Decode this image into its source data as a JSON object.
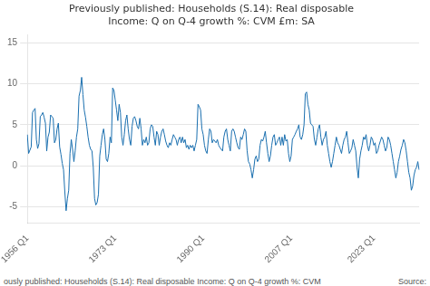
{
  "chart_data": {
    "type": "line",
    "title": "Previously published: Households (S.14): Real disposable\nIncome: Q on Q-4 growth %: CVM £m: SA",
    "annotations": [
      "ously published: Households (S.14): Real disposable Income: Q on Q-4 growth %: CVM",
      "Source:"
    ],
    "categories": [
      "1956 Q1",
      null,
      null,
      null,
      null,
      null,
      null,
      null,
      null,
      null,
      null,
      null,
      null,
      null,
      null,
      null,
      null,
      null,
      null,
      null,
      null,
      null,
      null,
      null,
      null,
      null,
      null,
      null,
      null,
      null,
      null,
      null,
      null,
      null,
      null,
      null,
      null,
      null,
      null,
      null,
      null,
      null,
      null,
      null,
      null,
      null,
      null,
      null,
      null,
      null,
      null,
      null,
      null,
      null,
      null,
      null,
      null,
      null,
      null,
      null,
      null,
      null,
      null,
      null,
      null,
      null,
      null,
      null,
      "1973 Q1",
      null,
      null,
      null,
      null,
      null,
      null,
      null,
      null,
      null,
      null,
      null,
      null,
      null,
      null,
      null,
      null,
      null,
      null,
      null,
      null,
      null,
      null,
      null,
      null,
      null,
      null,
      null,
      null,
      null,
      null,
      null,
      null,
      null,
      null,
      null,
      null,
      null,
      null,
      null,
      null,
      null,
      null,
      null,
      null,
      null,
      null,
      null,
      null,
      null,
      null,
      null,
      null,
      null,
      null,
      null,
      null,
      null,
      null,
      null,
      null,
      null,
      null,
      null,
      null,
      null,
      null,
      null,
      "1990 Q1",
      null,
      null,
      null,
      null,
      null,
      null,
      null,
      null,
      null,
      null,
      null,
      null,
      null,
      null,
      null,
      null,
      null,
      null,
      null,
      null,
      null,
      null,
      null,
      null,
      null,
      null,
      null,
      null,
      null,
      null,
      null,
      null,
      null,
      null,
      null,
      null,
      null,
      null,
      null,
      null,
      null,
      null,
      null,
      null,
      null,
      null,
      null,
      null,
      null,
      null,
      null,
      null,
      null,
      null,
      null,
      null,
      null,
      null,
      null,
      null,
      null,
      null,
      null,
      null,
      null,
      null,
      null,
      "2007 Q1",
      null,
      null,
      null,
      null,
      null,
      null,
      null,
      null,
      null,
      null,
      null,
      null,
      null,
      null,
      null,
      null,
      null,
      null,
      null,
      null,
      null,
      null,
      null,
      null,
      null,
      null,
      null,
      null,
      null,
      null,
      null,
      null,
      null,
      null,
      null,
      null,
      null,
      null,
      null,
      null,
      null,
      null,
      null,
      null,
      null,
      null,
      null,
      null,
      null,
      null,
      null,
      null,
      null,
      null,
      null,
      null,
      null,
      null,
      null,
      null,
      null,
      null,
      null,
      "2023 Q1",
      null,
      null,
      null,
      null,
      null,
      null,
      null,
      null,
      null,
      null,
      null,
      null,
      null,
      null,
      null,
      null,
      null,
      null,
      null,
      null,
      null,
      null,
      null,
      null,
      null,
      null,
      null,
      null,
      null,
      null,
      null,
      null,
      null,
      null,
      null
    ],
    "values": [
      3.8,
      1.5,
      1.9,
      2.3,
      6.5,
      6.8,
      7.0,
      3.2,
      2.1,
      2.7,
      6.0,
      6.2,
      6.5,
      5.9,
      5.2,
      1.8,
      3.5,
      4.1,
      6.2,
      6.0,
      5.8,
      2.8,
      3.2,
      4.5,
      5.2,
      2.3,
      1.4,
      0.3,
      -0.5,
      -3.2,
      -5.5,
      -4.0,
      -3.0,
      1.5,
      3.2,
      2.0,
      0.5,
      1.8,
      3.5,
      4.5,
      8.5,
      9.2,
      10.8,
      8.7,
      6.8,
      5.9,
      4.8,
      3.5,
      2.5,
      2.0,
      1.8,
      -0.2,
      -4.0,
      -4.8,
      -4.5,
      -3.5,
      1.2,
      2.5,
      3.8,
      4.5,
      3.2,
      0.8,
      0.5,
      1.5,
      3.5,
      2.8,
      9.5,
      9.2,
      8.0,
      6.8,
      5.5,
      7.5,
      6.5,
      3.5,
      2.5,
      3.8,
      5.5,
      6.2,
      4.5,
      3.2,
      2.5,
      4.8,
      5.8,
      6.0,
      5.5,
      4.8,
      4.5,
      5.8,
      4.5,
      2.5,
      3.2,
      2.8,
      3.5,
      2.5,
      2.8,
      4.5,
      5.0,
      4.8,
      3.5,
      2.5,
      4.2,
      3.8,
      2.5,
      3.5,
      4.2,
      4.5,
      3.8,
      3.0,
      2.5,
      2.2,
      2.8,
      2.5,
      3.2,
      3.8,
      3.5,
      3.2,
      2.5,
      3.2,
      3.5,
      2.8,
      3.5,
      2.8,
      3.2,
      2.2,
      2.5,
      2.0,
      2.5,
      2.2,
      2.5,
      1.8,
      2.5,
      3.2,
      7.5,
      7.2,
      6.8,
      4.5,
      3.8,
      2.5,
      1.8,
      1.5,
      3.2,
      4.5,
      4.2,
      2.8,
      3.2,
      3.0,
      2.8,
      3.2,
      2.5,
      2.2,
      2.0,
      1.8,
      3.5,
      4.2,
      4.5,
      3.2,
      2.5,
      1.8,
      4.2,
      4.5,
      4.2,
      3.5,
      2.8,
      2.2,
      2.0,
      3.5,
      3.2,
      3.8,
      4.5,
      4.2,
      1.8,
      0.5,
      0.2,
      -0.5,
      -1.5,
      -0.5,
      0.8,
      1.2,
      0.5,
      0.8,
      2.5,
      3.2,
      3.0,
      3.5,
      4.2,
      2.8,
      1.5,
      0.5,
      1.2,
      2.5,
      3.5,
      3.8,
      2.5,
      2.8,
      3.2,
      3.5,
      2.5,
      3.5,
      2.5,
      3.8,
      3.0,
      3.2,
      1.5,
      0.5,
      1.2,
      3.2,
      3.5,
      3.8,
      4.2,
      4.5,
      5.0,
      3.5,
      3.2,
      3.8,
      5.0,
      8.8,
      9.0,
      7.5,
      6.8,
      5.2,
      5.0,
      4.8,
      3.2,
      2.5,
      3.5,
      4.5,
      5.0,
      3.5,
      2.5,
      3.2,
      3.5,
      4.2,
      2.5,
      1.5,
      0.5,
      -0.2,
      0.5,
      1.5,
      2.5,
      3.5,
      2.8,
      2.5,
      2.0,
      1.5,
      2.5,
      3.2,
      3.5,
      4.2,
      2.8,
      1.5,
      1.8,
      2.2,
      3.2,
      2.5,
      1.8,
      -0.2,
      -1.5,
      0.8,
      1.8,
      2.5,
      3.5,
      3.2,
      3.8,
      2.5,
      1.8,
      2.5,
      3.5,
      3.2,
      2.5,
      2.8,
      1.5,
      1.8,
      2.5,
      3.0,
      3.5,
      3.2,
      2.5,
      1.8,
      2.2,
      3.5,
      3.2,
      2.5,
      1.5,
      0.5,
      -0.5,
      -1.5,
      -0.8,
      0.5,
      1.2,
      2.0,
      2.5,
      3.2,
      2.8,
      1.8,
      0.5,
      -0.8,
      -1.5,
      -3.0,
      -2.5,
      -1.2,
      -0.5,
      -0.2,
      0.5,
      -0.5
    ],
    "color": "#1a6faf",
    "ylim": [
      -7,
      16
    ],
    "yticks": [
      -5,
      0,
      5,
      10,
      15
    ],
    "grid": "y"
  }
}
